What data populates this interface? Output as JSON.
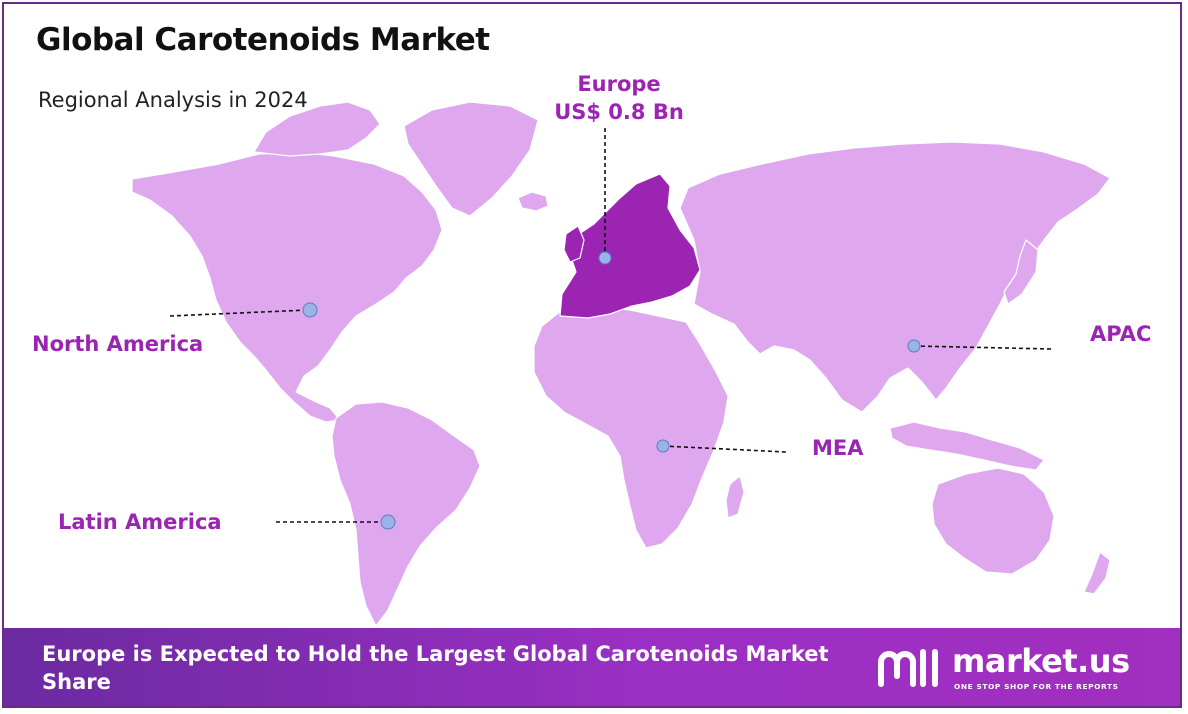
{
  "title": "Global Carotenoids Market",
  "subtitle": "Regional Analysis in 2024",
  "colors": {
    "land": "#dea7ee",
    "highlight": "#9b24b3",
    "label": "#9b24b3",
    "marker": "#9ab4e8",
    "footer_start": "#6b2aa0",
    "footer_end": "#a12fbf"
  },
  "regions": {
    "europe": {
      "name": "Europe",
      "value": "US$ 0.8 Bn",
      "highlighted": true
    },
    "north_america": {
      "name": "North America"
    },
    "apac": {
      "name": "APAC"
    },
    "mea": {
      "name": "MEA"
    },
    "latin_america": {
      "name": "Latin America"
    }
  },
  "footer": {
    "headline": "Europe is Expected to Hold the Largest Global Carotenoids Market Share",
    "brand_name": "market.us",
    "brand_tagline": "ONE STOP SHOP FOR THE REPORTS"
  }
}
